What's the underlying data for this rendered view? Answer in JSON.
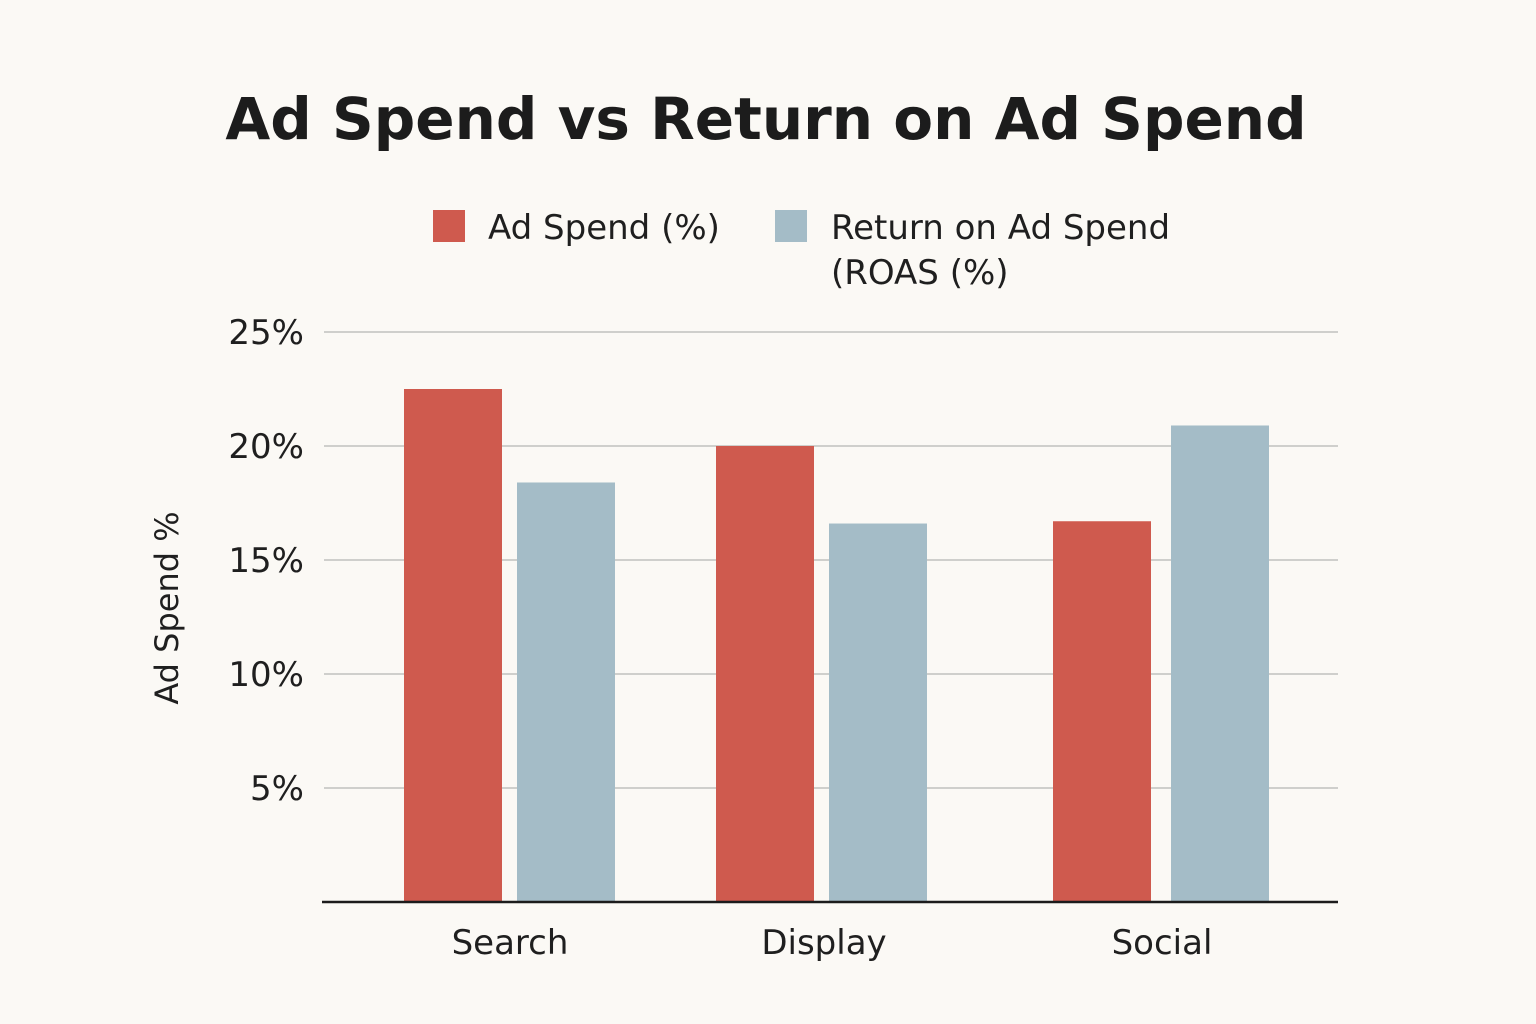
{
  "chart_data": {
    "type": "bar",
    "title": "Ad Spend vs Return on Ad Spend",
    "categories": [
      "Search",
      "Display",
      "Social"
    ],
    "series": [
      {
        "name": "Ad Spend (%)",
        "color": "#cf5a4e",
        "values": [
          22.5,
          20,
          16.7
        ]
      },
      {
        "name": "Return on Ad Spend (ROAS (%)",
        "color": "#a4bcc7",
        "values": [
          18.4,
          16.6,
          20.9
        ]
      }
    ],
    "legend": {
      "position": "top",
      "entries": [
        {
          "lines": [
            "Ad Spend (%)"
          ]
        },
        {
          "lines": [
            "Return on Ad Spend",
            "(ROAS (%)"
          ]
        }
      ]
    },
    "xlabel": "",
    "ylabel": "Ad Spend %",
    "ylim": [
      0,
      25
    ],
    "yticks": [
      5,
      10,
      15,
      20,
      25
    ],
    "ytick_labels": [
      "5%",
      "10%",
      "15%",
      "20%",
      "25%"
    ],
    "grid": true
  }
}
